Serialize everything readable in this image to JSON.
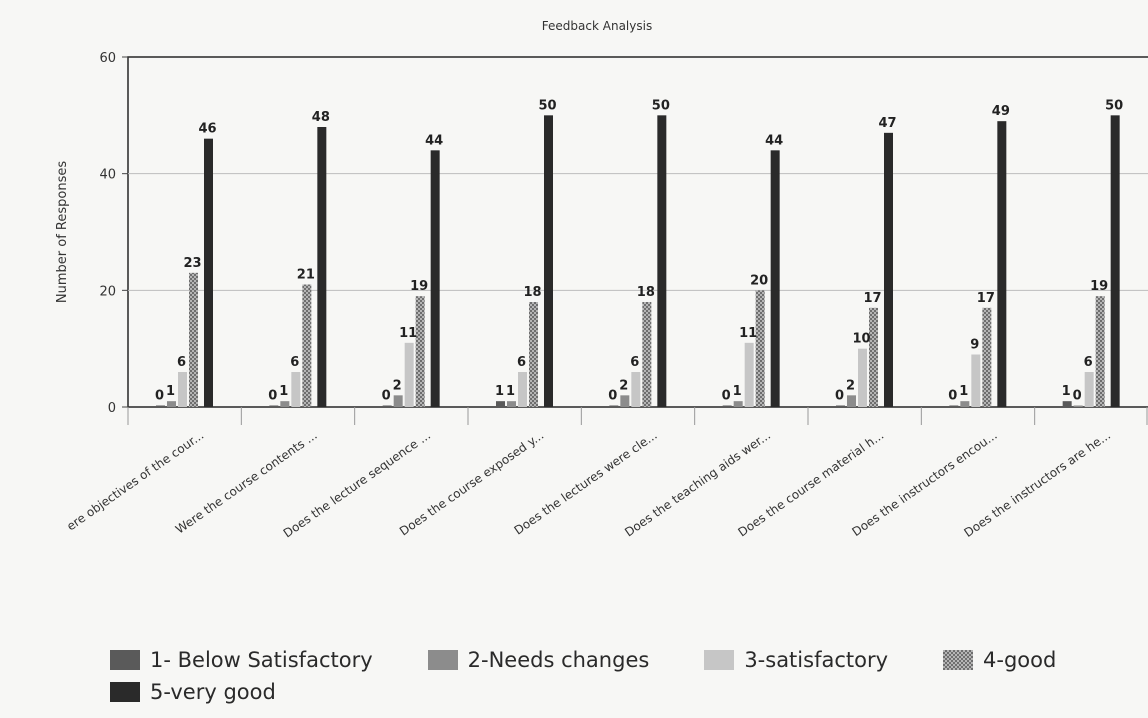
{
  "chart_data": {
    "type": "bar",
    "title": "Feedback Analysis",
    "ylabel": "Number of Responses",
    "xlabel": "",
    "ylim": [
      0,
      60
    ],
    "yticks": [
      0,
      20,
      40,
      60
    ],
    "grid": true,
    "legend_position": "bottom",
    "categories": [
      "ere objectives of the cour...",
      "Were the course contents ...",
      "Does the lecture sequence ...",
      "Does the course exposed y...",
      "Does the lectures were cle...",
      "Does the teaching aids wer...",
      "Does the course material h...",
      "Does the instructors encou...",
      "Does the instructors are he..."
    ],
    "series": [
      {
        "name": "1- Below Satisfactory",
        "color": "#5a5a5a",
        "values": [
          0,
          0,
          0,
          1,
          0,
          0,
          0,
          0,
          1
        ]
      },
      {
        "name": "2-Needs changes",
        "color": "#8c8c8c",
        "values": [
          1,
          1,
          2,
          1,
          2,
          1,
          2,
          1,
          0
        ]
      },
      {
        "name": "3-satisfactory",
        "color": "#c6c6c6",
        "values": [
          6,
          6,
          11,
          6,
          6,
          11,
          10,
          9,
          6
        ]
      },
      {
        "name": "4-good",
        "color": "#9a9a9a",
        "values": [
          23,
          21,
          19,
          18,
          18,
          20,
          17,
          17,
          19
        ]
      },
      {
        "name": "5-very good",
        "color": "#2a2a2a",
        "values": [
          46,
          48,
          44,
          50,
          50,
          44,
          47,
          49,
          50
        ]
      }
    ]
  }
}
